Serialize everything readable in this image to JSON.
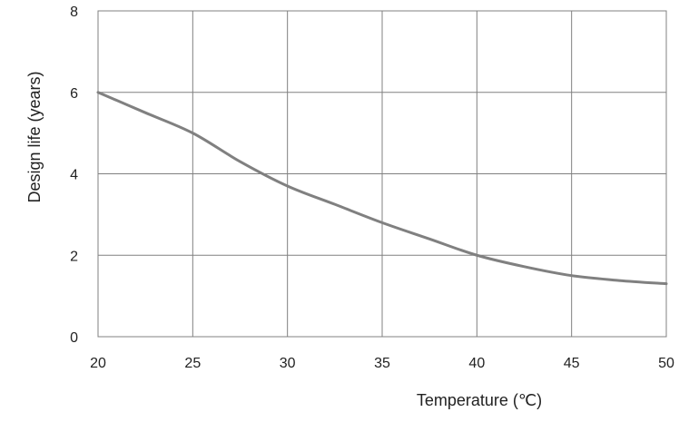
{
  "chart_data": {
    "type": "line",
    "title": "",
    "xlabel": "Temperature (℃)",
    "ylabel": "Design life (years)",
    "xlim": [
      20,
      50
    ],
    "ylim": [
      0,
      8
    ],
    "x_ticks": [
      "20",
      "25",
      "30",
      "35",
      "40",
      "45",
      "50"
    ],
    "y_ticks": [
      "0",
      "2",
      "4",
      "6",
      "8"
    ],
    "grid": true,
    "legend": "none",
    "series": [
      {
        "color": "#808080",
        "x": [
          20,
          22.5,
          25,
          27.5,
          30,
          32.5,
          35,
          37.5,
          40,
          42.5,
          45,
          47.5,
          50
        ],
        "y": [
          6.0,
          5.5,
          5.0,
          4.3,
          3.7,
          3.25,
          2.8,
          2.4,
          2.0,
          1.72,
          1.5,
          1.38,
          1.3
        ]
      }
    ]
  }
}
